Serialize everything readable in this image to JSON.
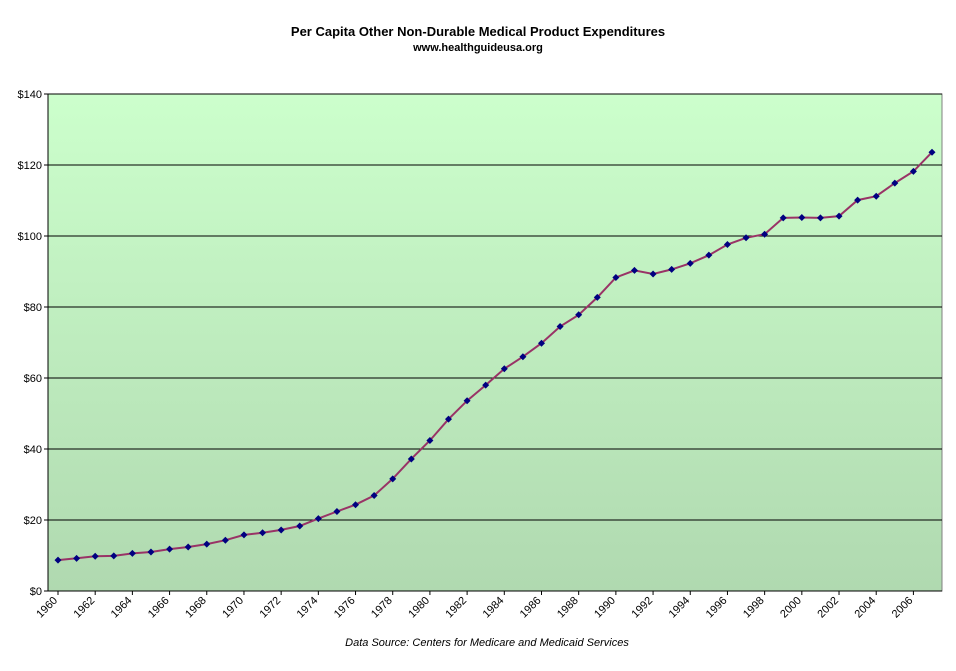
{
  "chart_data": {
    "type": "line",
    "title": "Per Capita Other Non-Durable Medical Product Expenditures",
    "subtitle": "www.healthguideusa.org",
    "source": "Data Source: Centers for Medicare and Medicaid Services",
    "xlabel": "",
    "ylabel": "",
    "ylim": [
      0,
      140
    ],
    "y_ticks": [
      "$0",
      "$20",
      "$40",
      "$60",
      "$80",
      "$100",
      "$120",
      "$140"
    ],
    "y_tick_values": [
      0,
      20,
      40,
      60,
      80,
      100,
      120,
      140
    ],
    "x_tick_labels": [
      "1960",
      "1962",
      "1964",
      "1966",
      "1968",
      "1970",
      "1972",
      "1974",
      "1976",
      "1978",
      "1980",
      "1982",
      "1984",
      "1986",
      "1988",
      "1990",
      "1992",
      "1994",
      "1996",
      "1998",
      "2000",
      "2002",
      "2004",
      "2006"
    ],
    "grid": true,
    "legend": "none",
    "colors": {
      "line": "#993366",
      "marker": "#000080",
      "bg_top": "#ccffcc",
      "bg_bottom": "#b0d9b0",
      "grid": "#000000"
    },
    "series": [
      {
        "x": [
          1960,
          1961,
          1962,
          1963,
          1964,
          1965,
          1966,
          1967,
          1968,
          1969,
          1970,
          1971,
          1972,
          1973,
          1974,
          1975,
          1976,
          1977,
          1978,
          1979,
          1980,
          1981,
          1982,
          1983,
          1984,
          1985,
          1986,
          1987,
          1988,
          1989,
          1990,
          1991,
          1992,
          1993,
          1994,
          1995,
          1996,
          1997,
          1998,
          1999,
          2000,
          2001,
          2002,
          2003,
          2004,
          2005,
          2006,
          2007
        ],
        "values": [
          8.7,
          9.2,
          9.8,
          9.9,
          10.6,
          11.0,
          11.8,
          12.4,
          13.2,
          14.3,
          15.8,
          16.4,
          17.2,
          18.3,
          20.4,
          22.4,
          24.3,
          26.9,
          31.6,
          37.2,
          42.4,
          48.4,
          53.6,
          58.0,
          62.6,
          66.0,
          69.8,
          74.5,
          77.8,
          82.7,
          88.3,
          90.3,
          89.3,
          90.6,
          92.3,
          94.6,
          97.6,
          99.5,
          100.5,
          105.1,
          105.2,
          105.1,
          105.6,
          110.1,
          111.2,
          114.9,
          118.2,
          123.6
        ]
      }
    ]
  }
}
